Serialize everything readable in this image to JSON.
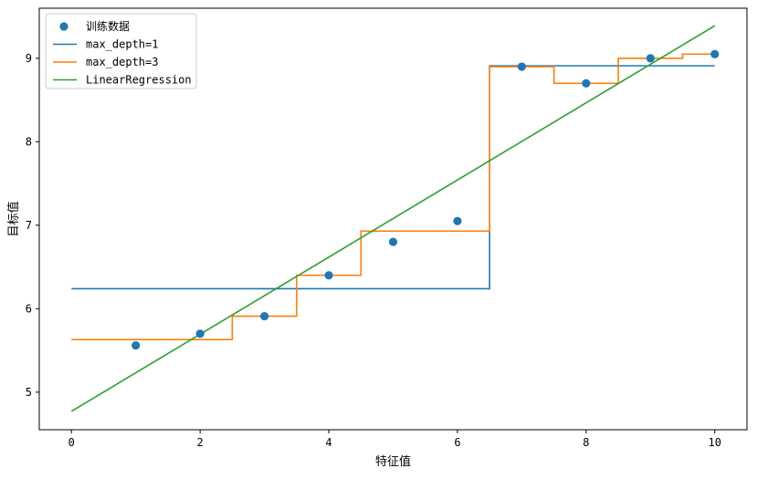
{
  "chart_data": {
    "type": "scatter",
    "title": "",
    "xlabel": "特征值",
    "ylabel": "目标值",
    "xlim": [
      -0.5,
      10.5
    ],
    "ylim": [
      4.55,
      9.6
    ],
    "xticks": [
      0,
      2,
      4,
      6,
      8,
      10
    ],
    "yticks": [
      5,
      6,
      7,
      8,
      9
    ],
    "grid": false,
    "legend_position": "top-left",
    "colors": {
      "scatter": "#1f77b4",
      "max_depth_1": "#1f77b4",
      "max_depth_3": "#ff7f0e",
      "linear": "#2ca02c"
    },
    "scatter": {
      "name": "训练数据",
      "x": [
        1,
        2,
        3,
        4,
        5,
        6,
        7,
        8,
        9,
        10
      ],
      "y": [
        5.56,
        5.7,
        5.91,
        6.4,
        6.8,
        7.05,
        8.9,
        8.7,
        9.0,
        9.05
      ]
    },
    "series": [
      {
        "name": "max_depth=1",
        "style": "step",
        "x": [
          0,
          6.5,
          6.5,
          10
        ],
        "y": [
          6.24,
          6.24,
          8.91,
          8.91
        ]
      },
      {
        "name": "max_depth=3",
        "style": "step",
        "x": [
          0,
          2.5,
          2.5,
          3.5,
          3.5,
          4.5,
          4.5,
          6.5,
          6.5,
          7.5,
          7.5,
          8.5,
          8.5,
          9.5,
          9.5,
          10
        ],
        "y": [
          5.63,
          5.63,
          5.91,
          5.91,
          6.4,
          6.4,
          6.93,
          6.93,
          8.9,
          8.9,
          8.7,
          8.7,
          9.0,
          9.0,
          9.05,
          9.05
        ]
      },
      {
        "name": "LinearRegression",
        "style": "line",
        "x": [
          0,
          10
        ],
        "y": [
          4.77,
          9.39
        ]
      }
    ]
  }
}
